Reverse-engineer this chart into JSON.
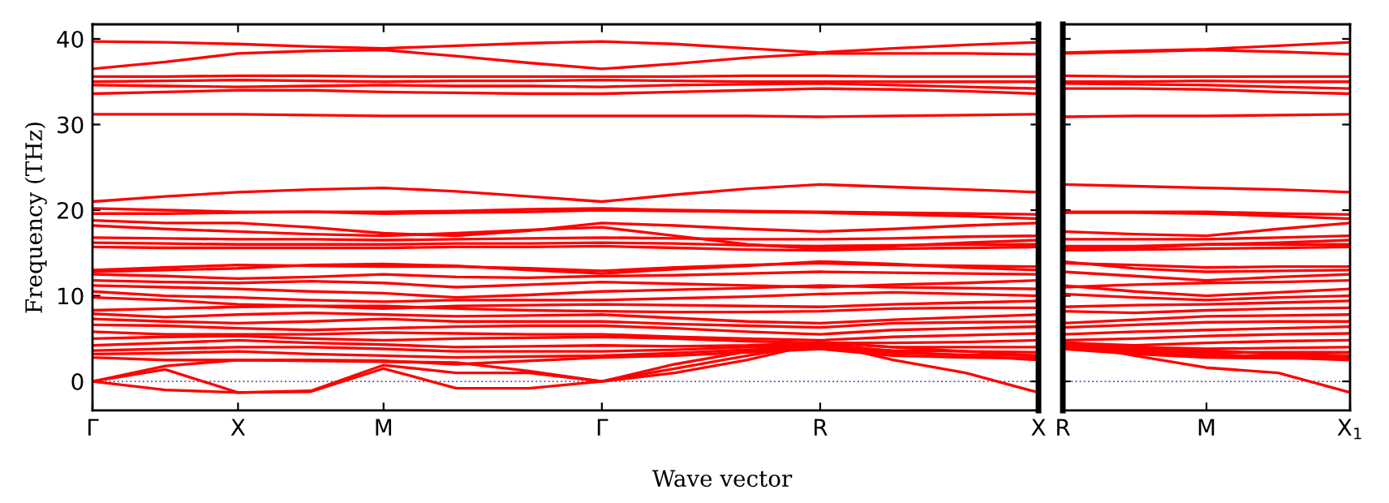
{
  "chart_data": [
    {
      "type": "line",
      "ylabel": "Frequency (THz)",
      "xlabel": "Wave vector",
      "categories": [
        "Γ",
        null,
        "X",
        null,
        "M",
        null,
        null,
        "Γ",
        null,
        null,
        "R",
        null,
        null,
        "X"
      ],
      "ylim": [
        -3.4,
        41.7
      ],
      "yticks": [
        0,
        10,
        20,
        30,
        40
      ],
      "ref_lines": [
        {
          "axis": "y",
          "value": 0,
          "color": "#5555aa",
          "line_style": "dotted"
        }
      ],
      "series": [
        {
          "color": "#ff0000",
          "values": [
            39.7,
            39.6,
            39.4,
            39.1,
            38.9,
            39.2,
            39.5,
            39.7,
            39.4,
            38.9,
            38.4,
            38.9,
            39.3,
            39.6
          ]
        },
        {
          "color": "#ff0000",
          "values": [
            36.5,
            37.3,
            38.3,
            38.6,
            38.7,
            38.0,
            37.2,
            36.5,
            37.1,
            37.8,
            38.3,
            38.3,
            38.3,
            38.2
          ]
        },
        {
          "color": "#ff0000",
          "values": [
            35.6,
            35.6,
            35.7,
            35.7,
            35.6,
            35.6,
            35.6,
            35.6,
            35.6,
            35.7,
            35.7,
            35.6,
            35.6,
            35.6
          ]
        },
        {
          "color": "#ff0000",
          "values": [
            35.0,
            35.1,
            35.2,
            35.1,
            35.0,
            35.1,
            35.1,
            35.2,
            35.1,
            35.0,
            35.0,
            35.0,
            35.0,
            35.0
          ]
        },
        {
          "color": "#ff0000",
          "values": [
            34.6,
            34.5,
            34.4,
            34.5,
            34.6,
            34.5,
            34.5,
            34.4,
            34.6,
            34.7,
            34.8,
            34.6,
            34.4,
            34.2
          ]
        },
        {
          "color": "#ff0000",
          "values": [
            33.6,
            33.8,
            34.0,
            34.0,
            33.8,
            33.7,
            33.6,
            33.6,
            33.8,
            34.0,
            34.2,
            34.1,
            33.9,
            33.6
          ]
        },
        {
          "color": "#ff0000",
          "values": [
            31.2,
            31.2,
            31.2,
            31.1,
            31.0,
            31.0,
            31.0,
            31.0,
            31.0,
            31.0,
            30.9,
            31.0,
            31.1,
            31.2
          ]
        },
        {
          "color": "#ff0000",
          "values": [
            21.0,
            21.6,
            22.1,
            22.4,
            22.6,
            22.2,
            21.6,
            21.0,
            21.8,
            22.5,
            23.0,
            22.7,
            22.4,
            22.1
          ]
        },
        {
          "color": "#ff0000",
          "values": [
            20.2,
            20.0,
            19.8,
            19.8,
            19.8,
            19.9,
            20.1,
            20.2,
            20.0,
            19.9,
            19.8,
            19.7,
            19.6,
            19.5
          ]
        },
        {
          "color": "#ff0000",
          "values": [
            19.6,
            19.6,
            19.7,
            19.8,
            19.6,
            19.7,
            19.8,
            20.0,
            19.9,
            19.8,
            19.7,
            19.5,
            19.3,
            19.0
          ]
        },
        {
          "color": "#ff0000",
          "values": [
            18.8,
            18.5,
            18.5,
            18.0,
            17.3,
            17.0,
            17.6,
            18.5,
            18.2,
            17.8,
            17.5,
            17.8,
            18.2,
            18.5
          ]
        },
        {
          "color": "#ff0000",
          "values": [
            18.2,
            17.8,
            17.5,
            17.2,
            17.0,
            17.3,
            17.7,
            18.0,
            17.0,
            16.0,
            15.5,
            15.8,
            16.2,
            16.5
          ]
        },
        {
          "color": "#ff0000",
          "values": [
            16.8,
            16.7,
            16.6,
            16.6,
            16.5,
            16.6,
            16.7,
            16.8,
            16.7,
            16.6,
            16.6,
            16.7,
            16.9,
            17.0
          ]
        },
        {
          "color": "#ff0000",
          "values": [
            16.2,
            16.1,
            16.0,
            16.0,
            16.0,
            16.1,
            16.1,
            16.2,
            16.1,
            15.9,
            15.8,
            15.9,
            16.0,
            16.0
          ]
        },
        {
          "color": "#ff0000",
          "values": [
            15.7,
            15.6,
            15.6,
            15.6,
            15.6,
            15.7,
            15.7,
            15.8,
            15.6,
            15.4,
            15.3,
            15.5,
            15.6,
            15.7
          ]
        },
        {
          "color": "#ff0000",
          "values": [
            13.0,
            13.3,
            13.6,
            13.5,
            13.4,
            13.4,
            13.2,
            12.9,
            13.3,
            13.6,
            13.8,
            13.6,
            13.5,
            13.4
          ]
        },
        {
          "color": "#ff0000",
          "values": [
            12.8,
            13.0,
            13.2,
            13.6,
            13.7,
            13.5,
            13.0,
            12.6,
            13.1,
            13.5,
            14.0,
            13.7,
            13.3,
            13.0
          ]
        },
        {
          "color": "#ff0000",
          "values": [
            12.5,
            12.3,
            12.0,
            12.2,
            12.5,
            12.2,
            12.1,
            12.3,
            12.4,
            12.6,
            12.8,
            12.7,
            12.6,
            12.5
          ]
        },
        {
          "color": "#ff0000",
          "values": [
            11.8,
            11.6,
            11.5,
            11.7,
            11.5,
            11.0,
            11.3,
            11.6,
            11.4,
            11.2,
            11.0,
            11.3,
            11.5,
            11.8
          ]
        },
        {
          "color": "#ff0000",
          "values": [
            11.2,
            11.0,
            10.8,
            10.5,
            10.3,
            9.8,
            10.1,
            10.5,
            10.7,
            10.9,
            11.2,
            11.0,
            10.9,
            10.8
          ]
        },
        {
          "color": "#ff0000",
          "values": [
            10.5,
            10.0,
            9.8,
            9.5,
            9.3,
            9.5,
            9.5,
            9.5,
            9.7,
            9.9,
            10.2,
            10.4,
            10.2,
            10.0
          ]
        },
        {
          "color": "#ff0000",
          "values": [
            9.8,
            9.5,
            9.0,
            8.8,
            8.5,
            8.8,
            8.9,
            9.0,
            8.9,
            8.8,
            8.7,
            9.0,
            9.2,
            9.4
          ]
        },
        {
          "color": "#ff0000",
          "values": [
            8.3,
            8.5,
            8.7,
            8.8,
            8.8,
            8.5,
            8.3,
            8.2,
            8.1,
            8.1,
            8.2,
            8.5,
            8.6,
            8.6
          ]
        },
        {
          "color": "#ff0000",
          "values": [
            7.9,
            7.5,
            7.8,
            8.0,
            7.8,
            7.6,
            7.7,
            7.8,
            7.4,
            7.0,
            6.8,
            7.2,
            7.5,
            7.8
          ]
        },
        {
          "color": "#ff0000",
          "values": [
            7.3,
            7.0,
            6.8,
            7.0,
            7.3,
            7.0,
            7.0,
            7.0,
            6.7,
            6.5,
            6.3,
            6.8,
            6.9,
            7.0
          ]
        },
        {
          "color": "#ff0000",
          "values": [
            6.6,
            6.5,
            6.2,
            6.0,
            6.2,
            6.4,
            6.5,
            6.5,
            6.2,
            5.8,
            5.5,
            6.0,
            6.2,
            6.4
          ]
        },
        {
          "color": "#ff0000",
          "values": [
            5.8,
            5.5,
            5.5,
            5.5,
            5.7,
            5.6,
            5.5,
            5.5,
            5.2,
            5.0,
            4.8,
            5.2,
            5.4,
            5.6
          ]
        },
        {
          "color": "#ff0000",
          "values": [
            5.0,
            5.2,
            5.3,
            5.0,
            4.8,
            5.0,
            5.1,
            5.2,
            5.0,
            4.7,
            4.5,
            4.5,
            4.6,
            4.8
          ]
        },
        {
          "color": "#ff0000",
          "values": [
            4.2,
            4.5,
            4.8,
            4.5,
            4.3,
            4.0,
            4.1,
            4.2,
            4.1,
            4.2,
            4.5,
            4.0,
            4.0,
            4.0
          ]
        },
        {
          "color": "#ff0000",
          "values": [
            3.6,
            3.8,
            4.0,
            4.0,
            3.8,
            3.5,
            3.5,
            3.5,
            3.7,
            4.0,
            4.2,
            3.6,
            3.5,
            3.4
          ]
        },
        {
          "color": "#ff0000",
          "values": [
            3.2,
            3.3,
            3.5,
            3.2,
            3.0,
            2.8,
            2.9,
            3.0,
            3.3,
            3.7,
            4.0,
            3.3,
            3.1,
            3.0
          ]
        },
        {
          "color": "#ff0000",
          "values": [
            2.8,
            2.5,
            2.5,
            2.5,
            2.4,
            2.0,
            2.4,
            2.8,
            3.0,
            3.4,
            3.8,
            3.0,
            2.8,
            2.7
          ]
        },
        {
          "color": "#ff0000",
          "values": [
            0,
            1.8,
            2.5,
            2.4,
            2.3,
            2.2,
            1.2,
            0,
            2.0,
            3.5,
            4.6,
            4.0,
            3.5,
            3.0
          ]
        },
        {
          "color": "#ff0000",
          "values": [
            0,
            1.4,
            -1.3,
            -1.1,
            1.9,
            1.0,
            1.0,
            0,
            1.5,
            3.0,
            4.4,
            3.5,
            3.0,
            2.5
          ]
        },
        {
          "color": "#ff0000",
          "values": [
            0,
            -1.0,
            -1.3,
            -1.2,
            1.5,
            -0.8,
            -0.8,
            0,
            1.0,
            2.5,
            4.5,
            2.5,
            1.0,
            -1.3
          ]
        }
      ]
    },
    {
      "type": "line",
      "tick_labels": "x",
      "categories": [
        "R",
        null,
        "M",
        null,
        "X$_{1}$"
      ],
      "ylim": [
        -3.4,
        41.7
      ],
      "yticks": [
        0,
        10,
        20,
        30,
        40
      ],
      "ref_lines": [
        {
          "axis": "y",
          "value": 0,
          "color": "#5555aa",
          "line_style": "dotted"
        }
      ],
      "series": [
        {
          "color": "#ff0000",
          "values": [
            38.4,
            38.6,
            38.8,
            39.2,
            39.6
          ]
        },
        {
          "color": "#ff0000",
          "values": [
            38.3,
            38.5,
            38.7,
            38.5,
            38.2
          ]
        },
        {
          "color": "#ff0000",
          "values": [
            35.7,
            35.6,
            35.6,
            35.6,
            35.6
          ]
        },
        {
          "color": "#ff0000",
          "values": [
            35.0,
            35.0,
            35.1,
            35.0,
            35.0
          ]
        },
        {
          "color": "#ff0000",
          "values": [
            34.8,
            34.7,
            34.6,
            34.4,
            34.2
          ]
        },
        {
          "color": "#ff0000",
          "values": [
            34.2,
            34.2,
            34.1,
            33.8,
            33.6
          ]
        },
        {
          "color": "#ff0000",
          "values": [
            30.9,
            31.0,
            31.0,
            31.1,
            31.2
          ]
        },
        {
          "color": "#ff0000",
          "values": [
            23.0,
            22.8,
            22.6,
            22.4,
            22.1
          ]
        },
        {
          "color": "#ff0000",
          "values": [
            19.8,
            19.8,
            19.8,
            19.6,
            19.5
          ]
        },
        {
          "color": "#ff0000",
          "values": [
            19.7,
            19.7,
            19.6,
            19.3,
            19.0
          ]
        },
        {
          "color": "#ff0000",
          "values": [
            17.5,
            17.2,
            17.0,
            17.8,
            18.5
          ]
        },
        {
          "color": "#ff0000",
          "values": [
            15.5,
            15.6,
            16.0,
            16.2,
            16.5
          ]
        },
        {
          "color": "#ff0000",
          "values": [
            16.6,
            16.6,
            16.6,
            16.8,
            17.0
          ]
        },
        {
          "color": "#ff0000",
          "values": [
            15.8,
            15.8,
            16.0,
            16.0,
            16.0
          ]
        },
        {
          "color": "#ff0000",
          "values": [
            15.3,
            15.4,
            15.5,
            15.6,
            15.7
          ]
        },
        {
          "color": "#ff0000",
          "values": [
            13.8,
            13.6,
            13.3,
            13.4,
            13.4
          ]
        },
        {
          "color": "#ff0000",
          "values": [
            14.0,
            13.2,
            12.8,
            12.9,
            13.0
          ]
        },
        {
          "color": "#ff0000",
          "values": [
            12.8,
            12.3,
            11.8,
            12.2,
            12.5
          ]
        },
        {
          "color": "#ff0000",
          "values": [
            11.0,
            11.3,
            11.5,
            11.6,
            11.8
          ]
        },
        {
          "color": "#ff0000",
          "values": [
            11.2,
            10.5,
            10.0,
            10.4,
            10.8
          ]
        },
        {
          "color": "#ff0000",
          "values": [
            10.2,
            9.8,
            9.5,
            9.8,
            10.0
          ]
        },
        {
          "color": "#ff0000",
          "values": [
            8.7,
            8.9,
            9.0,
            9.2,
            9.4
          ]
        },
        {
          "color": "#ff0000",
          "values": [
            8.2,
            8.0,
            8.3,
            8.5,
            8.6
          ]
        },
        {
          "color": "#ff0000",
          "values": [
            6.8,
            7.2,
            7.6,
            7.7,
            7.8
          ]
        },
        {
          "color": "#ff0000",
          "values": [
            6.3,
            6.6,
            6.9,
            7.0,
            7.0
          ]
        },
        {
          "color": "#ff0000",
          "values": [
            5.5,
            5.8,
            6.0,
            6.2,
            6.4
          ]
        },
        {
          "color": "#ff0000",
          "values": [
            4.8,
            5.0,
            5.3,
            5.5,
            5.6
          ]
        },
        {
          "color": "#ff0000",
          "values": [
            4.5,
            4.2,
            4.5,
            4.7,
            4.8
          ]
        },
        {
          "color": "#ff0000",
          "values": [
            4.2,
            4.0,
            3.8,
            3.9,
            4.0
          ]
        },
        {
          "color": "#ff0000",
          "values": [
            4.2,
            3.6,
            3.4,
            3.4,
            3.4
          ]
        },
        {
          "color": "#ff0000",
          "values": [
            4.0,
            3.4,
            3.0,
            3.0,
            3.0
          ]
        },
        {
          "color": "#ff0000",
          "values": [
            3.8,
            3.2,
            2.8,
            2.7,
            2.7
          ]
        },
        {
          "color": "#ff0000",
          "values": [
            4.6,
            4.0,
            3.6,
            3.2,
            3.0
          ]
        },
        {
          "color": "#ff0000",
          "values": [
            4.4,
            3.8,
            3.2,
            2.8,
            2.5
          ]
        },
        {
          "color": "#ff0000",
          "values": [
            4.5,
            3.0,
            1.6,
            1.0,
            -1.3
          ]
        }
      ]
    }
  ]
}
